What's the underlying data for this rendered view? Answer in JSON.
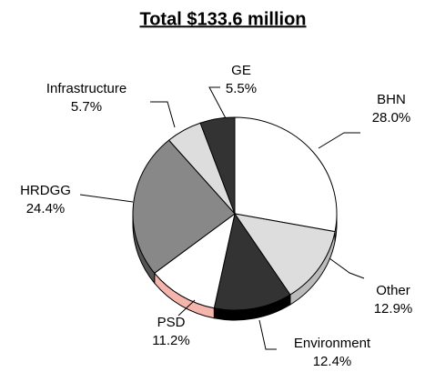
{
  "chart_data": {
    "type": "pie",
    "title": "Total $133.6 million",
    "categories": [
      "BHN",
      "Other",
      "Environment",
      "PSD",
      "HRDGG",
      "Infrastructure",
      "GE"
    ],
    "values": [
      28.0,
      12.9,
      12.4,
      11.2,
      24.4,
      5.7,
      5.5
    ],
    "value_labels": [
      "28.0%",
      "12.9%",
      "12.4%",
      "11.2%",
      "24.4%",
      "5.7%",
      "5.5%"
    ],
    "colors": [
      "#ffffff",
      "#dddddd",
      "#333333",
      "#ffffff",
      "#888888",
      "#dddddd",
      "#333333"
    ],
    "side_colors": [
      "#bbbbbb",
      "#bbbbbb",
      "#000000",
      "#f4b6ac",
      "#555555",
      "#aaaaaa",
      "#000000"
    ]
  }
}
